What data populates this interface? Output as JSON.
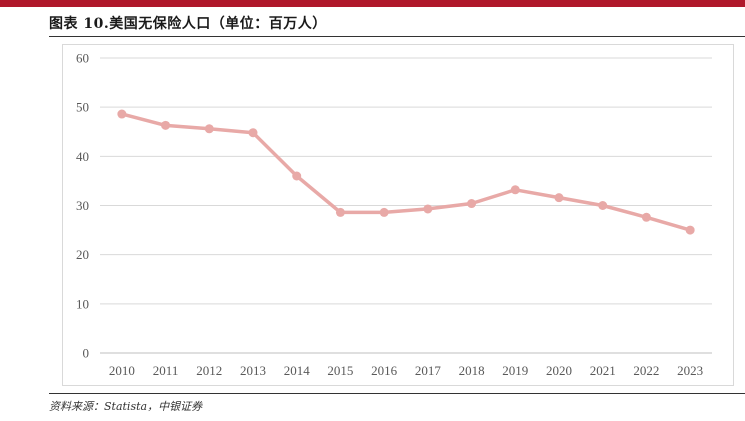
{
  "figure": {
    "title": "图表 10.美国无保险人口（单位：百万人）",
    "source": "资料来源：Statista，中银证券"
  },
  "colors": {
    "accent": "#b0182b",
    "series_line": "#e8a9a7",
    "gridline": "#d9d9d9",
    "tick_text": "#595959"
  },
  "chart_data": {
    "type": "line",
    "title": "",
    "xlabel": "",
    "ylabel": "",
    "x": [
      "2010",
      "2011",
      "2012",
      "2013",
      "2014",
      "2015",
      "2016",
      "2017",
      "2018",
      "2019",
      "2020",
      "2021",
      "2022",
      "2023"
    ],
    "series": [
      {
        "values": [
          48.6,
          46.3,
          45.6,
          44.8,
          36.0,
          28.6,
          28.6,
          29.3,
          30.4,
          33.2,
          31.6,
          30.0,
          27.6,
          25.0
        ]
      }
    ],
    "ylim": [
      0,
      60
    ],
    "yticks": [
      "0",
      "10",
      "20",
      "30",
      "40",
      "50",
      "60"
    ],
    "grid": true,
    "markers": true
  }
}
